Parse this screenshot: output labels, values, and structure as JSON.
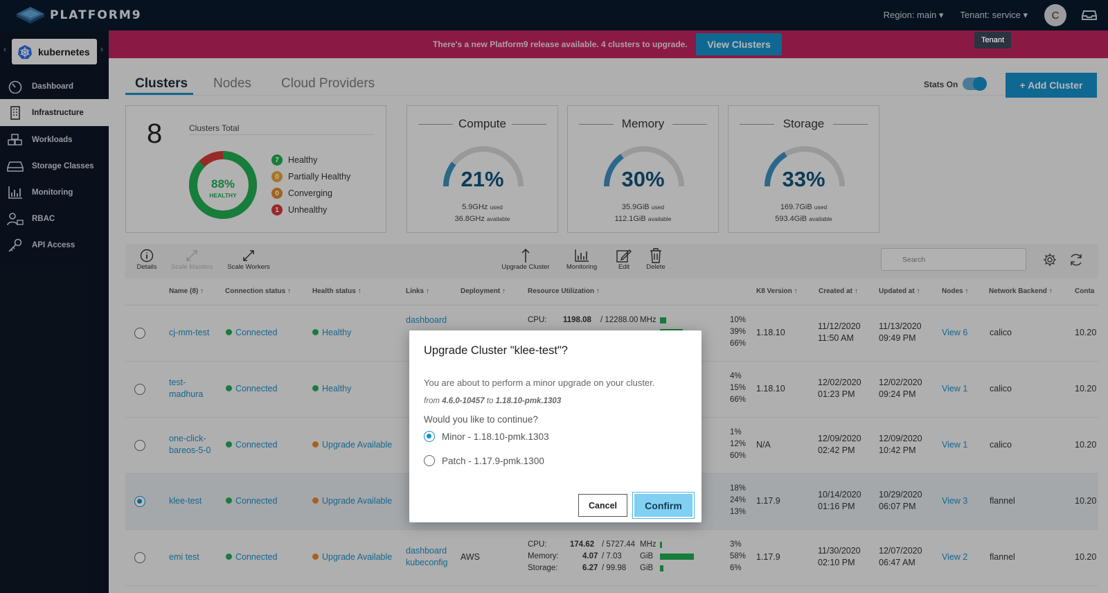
{
  "header": {
    "logo_text": "PLATFORM9",
    "region": "Region: main",
    "tenant": "Tenant: service",
    "avatar_initial": "C",
    "tooltip": "Tenant"
  },
  "sidebar": {
    "app_selector": "kubernetes",
    "items": [
      {
        "label": "Dashboard",
        "icon": "dashboard-gauge-icon"
      },
      {
        "label": "Infrastructure",
        "icon": "building-icon"
      },
      {
        "label": "Workloads",
        "icon": "cubes-icon"
      },
      {
        "label": "Storage Classes",
        "icon": "hard-drive-icon"
      },
      {
        "label": "Monitoring",
        "icon": "chart-icon"
      },
      {
        "label": "RBAC",
        "icon": "user-lock-icon"
      },
      {
        "label": "API Access",
        "icon": "key-icon"
      }
    ]
  },
  "banner": {
    "text": "There's a new Platform9 release available. 4 clusters to upgrade.",
    "button": "View Clusters"
  },
  "tabs": [
    "Clusters",
    "Nodes",
    "Cloud Providers"
  ],
  "stats_toggle_label": "Stats On",
  "add_button": "+ Add Cluster",
  "summary": {
    "total": "8",
    "total_label": "Clusters Total",
    "donut_pct": "88%",
    "donut_label": "HEALTHY",
    "healthy_fraction": 0.875,
    "legend": [
      {
        "count": "7",
        "label": "Healthy",
        "color": "#1fae53"
      },
      {
        "count": "0",
        "label": "Partially Healthy",
        "color": "#e8a532"
      },
      {
        "count": "0",
        "label": "Converging",
        "color": "#e08a28"
      },
      {
        "count": "1",
        "label": "Unhealthy",
        "color": "#d33a3a"
      }
    ]
  },
  "gauges": [
    {
      "title": "Compute",
      "pct": "21%",
      "value": 0.21,
      "used": "5.9GHz",
      "used_unit": "used",
      "avail": "36.8GHz",
      "avail_unit": "available"
    },
    {
      "title": "Memory",
      "pct": "30%",
      "value": 0.3,
      "used": "35.9GiB",
      "used_unit": "used",
      "avail": "112.1GiB",
      "avail_unit": "available"
    },
    {
      "title": "Storage",
      "pct": "33%",
      "value": 0.33,
      "used": "169.7GiB",
      "used_unit": "used",
      "avail": "593.4GiB",
      "avail_unit": "available"
    }
  ],
  "toolbar": {
    "details": "Details",
    "scale_masters": "Scale Masters",
    "scale_workers": "Scale Workers",
    "upgrade": "Upgrade Cluster",
    "monitoring": "Monitoring",
    "edit": "Edit",
    "delete": "Delete",
    "search_placeholder": "Search"
  },
  "columns": [
    "Name (8)",
    "Connection status",
    "Health status",
    "Links",
    "Deployment",
    "Resource Utilization",
    "K8 Version",
    "Created at",
    "Updated at",
    "Nodes",
    "Network Backend",
    "Conta"
  ],
  "rows": [
    {
      "name": "cj-mm-test",
      "conn": "Connected",
      "health": "Healthy",
      "health_color": "#1fae53",
      "link1": "dashboard",
      "link2": "",
      "k8": "1.18.10",
      "created": "11/12/2020",
      "created_t": "11:50 AM",
      "updated": "11/13/2020",
      "updated_t": "09:49 PM",
      "nodes": "View 6",
      "net": "calico",
      "cont": "10.20",
      "cpu_label": "CPU:",
      "cpu_val": "1198.08",
      "cpu_total": "/ 12288.00",
      "cpu_unit": "MHz",
      "pcts": [
        "10%",
        "39%",
        "66%"
      ],
      "fill": [
        0.1,
        0.39,
        0.66
      ]
    },
    {
      "name1": "test-",
      "name2": "madhura",
      "conn": "Connected",
      "health": "Healthy",
      "health_color": "#1fae53",
      "k8": "1.18.10",
      "created": "12/02/2020",
      "created_t": "01:23 PM",
      "updated": "12/02/2020",
      "updated_t": "09:24 PM",
      "nodes": "View 1",
      "net": "calico",
      "cont": "10.20",
      "pcts": [
        "4%",
        "15%",
        "66%"
      ],
      "fill": [
        0.04,
        0.15,
        0.66
      ]
    },
    {
      "name1": "one-click-",
      "name2": "bareos-5-0",
      "conn": "Connected",
      "health": "Upgrade Available",
      "health_color": "#e8872a",
      "k8": "N/A",
      "created": "12/09/2020",
      "created_t": "02:42 PM",
      "updated": "12/09/2020",
      "updated_t": "10:42 PM",
      "nodes": "View 1",
      "net": "calico",
      "cont": "10.20",
      "pcts": [
        "1%",
        "12%",
        "60%"
      ],
      "fill": [
        0.01,
        0.12,
        0.6
      ]
    },
    {
      "name": "klee-test",
      "conn": "Connected",
      "health": "Upgrade Available",
      "health_color": "#e8872a",
      "k8": "1.17.9",
      "created": "10/14/2020",
      "created_t": "01:16 PM",
      "updated": "10/29/2020",
      "updated_t": "06:07 PM",
      "nodes": "View 3",
      "net": "flannel",
      "cont": "10.20",
      "pcts": [
        "18%",
        "24%",
        "13%"
      ],
      "fill": [
        0.18,
        0.24,
        0.13
      ]
    },
    {
      "name": "emi test",
      "conn": "Connected",
      "health": "Upgrade Available",
      "health_color": "#e8872a",
      "link1": "dashboard",
      "link2": "kubeconfig",
      "deploy": "AWS",
      "k8": "1.17.9",
      "created": "11/30/2020",
      "created_t": "02:10 PM",
      "updated": "12/07/2020",
      "updated_t": "06:47 AM",
      "nodes": "View 2",
      "net": "flannel",
      "cont": "10.20",
      "cpu_label": "CPU:",
      "cpu_val": "174.62",
      "cpu_total": "/ 5727.44",
      "cpu_unit": "MHz",
      "mem_label": "Memory:",
      "mem_val": "4.07",
      "mem_total": "/ 7.03",
      "mem_unit": "GiB",
      "sto_label": "Storage:",
      "sto_val": "6.27",
      "sto_total": "/ 99.98",
      "sto_unit": "GiB",
      "pcts": [
        "3%",
        "58%",
        "6%"
      ],
      "fill": [
        0.03,
        0.58,
        0.06
      ]
    }
  ],
  "modal": {
    "title": "Upgrade Cluster \"klee-test\"?",
    "body": "You are about to perform a minor upgrade on your cluster.",
    "from_prefix": "from",
    "from_ver": "4.6.0-10457",
    "to_word": "to",
    "to_ver": "1.18.10-pmk.1303",
    "question": "Would you like to continue?",
    "option_minor": "Minor - 1.18.10-pmk.1303",
    "option_patch": "Patch - 1.17.9-pmk.1300",
    "cancel": "Cancel",
    "confirm": "Confirm"
  }
}
